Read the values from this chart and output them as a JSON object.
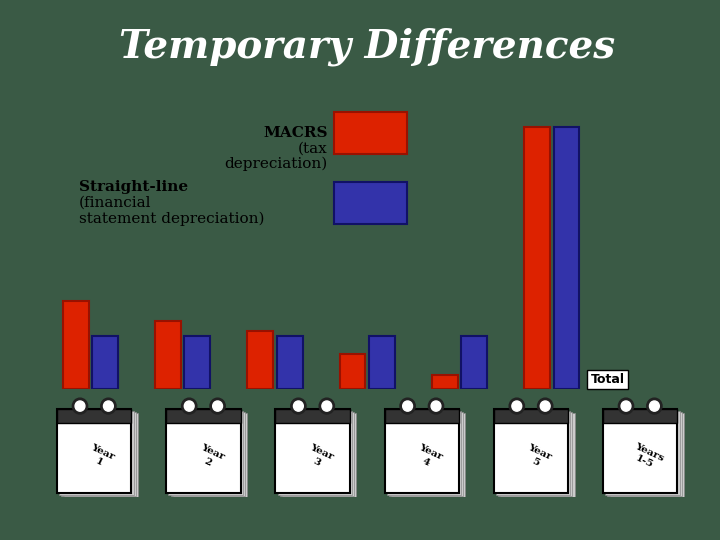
{
  "title": "Temporary Differences",
  "title_bg_color": "#1a1a8c",
  "title_text_color": "#ffffff",
  "slide_bg_color": "#f5d800",
  "outer_bg_color": "#3a5a45",
  "macrs_values": [
    4.5,
    3.5,
    3.0,
    1.8,
    0.7,
    13.5
  ],
  "sl_values": [
    2.7,
    2.7,
    2.7,
    2.7,
    2.7,
    13.5
  ],
  "macrs_color": "#dd2200",
  "sl_color": "#3333aa",
  "macrs_edge_color": "#991100",
  "sl_edge_color": "#111166",
  "total_label": "Total",
  "bar_width": 0.28,
  "year_labels": [
    "Year\n1",
    "Year\n2",
    "Year\n3",
    "Year\n4",
    "Year\n5",
    "Years\n1-5"
  ]
}
